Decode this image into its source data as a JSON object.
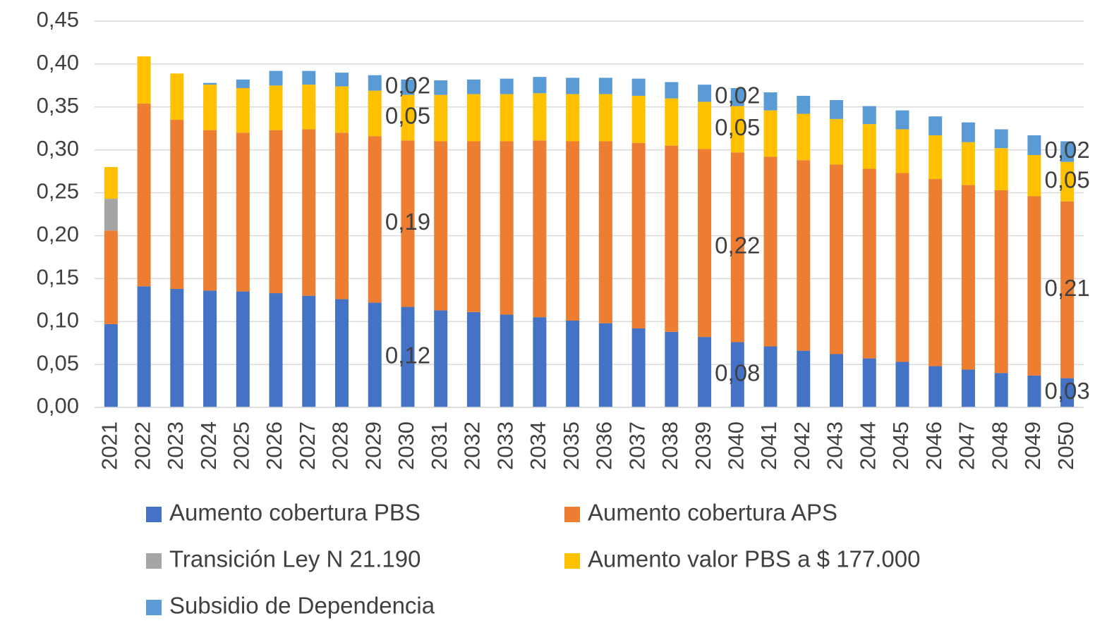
{
  "chart_data": {
    "type": "stacked_bar",
    "categories": [
      "2021",
      "2022",
      "2023",
      "2024",
      "2025",
      "2026",
      "2027",
      "2028",
      "2029",
      "2030",
      "2031",
      "2032",
      "2033",
      "2034",
      "2035",
      "2036",
      "2037",
      "2038",
      "2039",
      "2040",
      "2041",
      "2042",
      "2043",
      "2044",
      "2045",
      "2046",
      "2047",
      "2048",
      "2049",
      "2050"
    ],
    "series": [
      {
        "name": "Aumento cobertura PBS",
        "color": "#4472c4",
        "values": [
          0.097,
          0.141,
          0.138,
          0.136,
          0.135,
          0.133,
          0.13,
          0.126,
          0.122,
          0.117,
          0.113,
          0.111,
          0.108,
          0.105,
          0.101,
          0.098,
          0.092,
          0.088,
          0.082,
          0.076,
          0.071,
          0.066,
          0.062,
          0.057,
          0.053,
          0.048,
          0.044,
          0.04,
          0.037,
          0.034
        ],
        "value_labels": [
          null,
          null,
          null,
          null,
          null,
          null,
          null,
          null,
          null,
          "0,12",
          null,
          null,
          null,
          null,
          null,
          null,
          null,
          null,
          null,
          "0,08",
          null,
          null,
          null,
          null,
          null,
          null,
          null,
          null,
          null,
          "0,03"
        ]
      },
      {
        "name": "Aumento cobertura APS",
        "color": "#ed7d31",
        "values": [
          0.109,
          0.213,
          0.197,
          0.187,
          0.185,
          0.19,
          0.194,
          0.194,
          0.194,
          0.194,
          0.197,
          0.199,
          0.202,
          0.206,
          0.209,
          0.212,
          0.216,
          0.217,
          0.219,
          0.221,
          0.221,
          0.222,
          0.221,
          0.221,
          0.22,
          0.218,
          0.215,
          0.213,
          0.209,
          0.206
        ],
        "value_labels": [
          null,
          null,
          null,
          null,
          null,
          null,
          null,
          null,
          null,
          "0,19",
          null,
          null,
          null,
          null,
          null,
          null,
          null,
          null,
          null,
          "0,22",
          null,
          null,
          null,
          null,
          null,
          null,
          null,
          null,
          null,
          "0,21"
        ]
      },
      {
        "name": "Transición Ley N 21.190",
        "color": "#a5a5a5",
        "values": [
          0.037,
          0,
          0,
          0,
          0,
          0,
          0,
          0,
          0,
          0,
          0,
          0,
          0,
          0,
          0,
          0,
          0,
          0,
          0,
          0,
          0,
          0,
          0,
          0,
          0,
          0,
          0,
          0,
          0,
          0
        ]
      },
      {
        "name": "Aumento valor PBS a $ 177.000",
        "color": "#ffc000",
        "values": [
          0.037,
          0.055,
          0.054,
          0.053,
          0.052,
          0.052,
          0.052,
          0.054,
          0.053,
          0.053,
          0.054,
          0.055,
          0.055,
          0.055,
          0.055,
          0.055,
          0.055,
          0.055,
          0.055,
          0.054,
          0.054,
          0.054,
          0.053,
          0.052,
          0.051,
          0.051,
          0.05,
          0.049,
          0.048,
          0.046
        ],
        "value_labels": [
          null,
          null,
          null,
          null,
          null,
          null,
          null,
          null,
          null,
          "0,05",
          null,
          null,
          null,
          null,
          null,
          null,
          null,
          null,
          null,
          "0,05",
          null,
          null,
          null,
          null,
          null,
          null,
          null,
          null,
          null,
          "0,05"
        ]
      },
      {
        "name": "Subsidio de Dependencia",
        "color": "#5b9bd5",
        "values": [
          0,
          0,
          0,
          0.002,
          0.01,
          0.017,
          0.016,
          0.016,
          0.018,
          0.018,
          0.017,
          0.017,
          0.018,
          0.019,
          0.019,
          0.019,
          0.02,
          0.019,
          0.02,
          0.021,
          0.021,
          0.021,
          0.022,
          0.021,
          0.022,
          0.022,
          0.023,
          0.022,
          0.023,
          0.024
        ],
        "value_labels": [
          null,
          null,
          null,
          null,
          null,
          null,
          null,
          null,
          null,
          "0,02",
          null,
          null,
          null,
          null,
          null,
          null,
          null,
          null,
          null,
          "0,02",
          null,
          null,
          null,
          null,
          null,
          null,
          null,
          null,
          null,
          "0,02"
        ]
      }
    ],
    "ylim": [
      0,
      0.45
    ],
    "yticks": [
      {
        "value": 0,
        "label": "0,00"
      },
      {
        "value": 0.05,
        "label": "0,05"
      },
      {
        "value": 0.1,
        "label": "0,10"
      },
      {
        "value": 0.15,
        "label": "0,15"
      },
      {
        "value": 0.2,
        "label": "0,20"
      },
      {
        "value": 0.25,
        "label": "0,25"
      },
      {
        "value": 0.3,
        "label": "0,30"
      },
      {
        "value": 0.35,
        "label": "0,35"
      },
      {
        "value": 0.4,
        "label": "0,40"
      },
      {
        "value": 0.45,
        "label": "0,45"
      }
    ],
    "grid": true
  }
}
